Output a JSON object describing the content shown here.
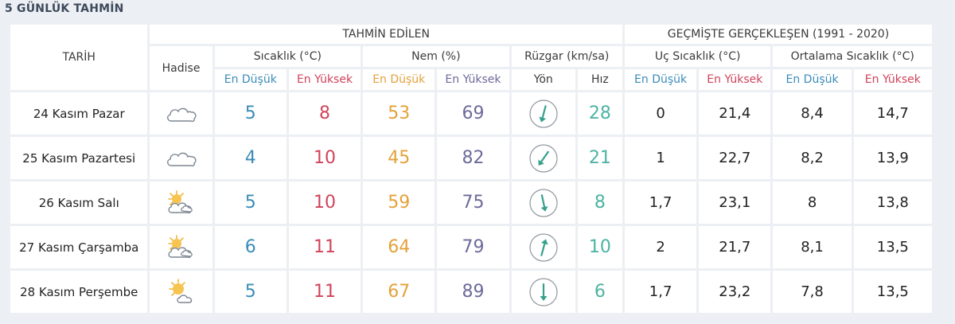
{
  "section_title": "5 GÜNLÜK TAHMİN",
  "header": {
    "forecast_group": "TAHMİN EDİLEN",
    "historical_group": "GEÇMİŞTE GERÇEKLEŞEN (1991 - 2020)",
    "date_label": "TARİH",
    "event_label": "Hadise",
    "temp_label": "Sıcaklık (°C)",
    "humidity_label": "Nem (%)",
    "wind_label": "Rüzgar (km/sa)",
    "extreme_temp_label": "Uç Sıcaklık (°C)",
    "avg_temp_label": "Ortalama Sıcaklık (°C)",
    "low": "En Düşük",
    "high": "En Yüksek",
    "direction": "Yön",
    "speed": "Hız"
  },
  "rows": [
    {
      "date": "24 Kasım Pazar",
      "icon": "cloudy-icon",
      "temp_low": "5",
      "temp_high": "8",
      "hum_low": "53",
      "hum_high": "69",
      "wind_dir_deg": 195,
      "wind_speed": "28",
      "ext_low": "0",
      "ext_high": "21,4",
      "avg_low": "8,4",
      "avg_high": "14,7"
    },
    {
      "date": "25 Kasım Pazartesi",
      "icon": "cloudy-icon",
      "temp_low": "4",
      "temp_high": "10",
      "hum_low": "45",
      "hum_high": "82",
      "wind_dir_deg": 215,
      "wind_speed": "21",
      "ext_low": "1",
      "ext_high": "22,7",
      "avg_low": "8,2",
      "avg_high": "13,9"
    },
    {
      "date": "26 Kasım Salı",
      "icon": "partly-cloudy-icon",
      "temp_low": "5",
      "temp_high": "10",
      "hum_low": "59",
      "hum_high": "75",
      "wind_dir_deg": 168,
      "wind_speed": "8",
      "ext_low": "1,7",
      "ext_high": "23,1",
      "avg_low": "8",
      "avg_high": "13,8"
    },
    {
      "date": "27 Kasım Çarşamba",
      "icon": "partly-cloudy-icon",
      "temp_low": "6",
      "temp_high": "11",
      "hum_low": "64",
      "hum_high": "79",
      "wind_dir_deg": 15,
      "wind_speed": "10",
      "ext_low": "2",
      "ext_high": "21,7",
      "avg_low": "8,1",
      "avg_high": "13,5"
    },
    {
      "date": "28 Kasım Perşembe",
      "icon": "sun-cloud-icon",
      "temp_low": "5",
      "temp_high": "11",
      "hum_low": "67",
      "hum_high": "89",
      "wind_dir_deg": 180,
      "wind_speed": "6",
      "ext_low": "1,7",
      "ext_high": "23,2",
      "avg_low": "7,8",
      "avg_high": "13,5"
    }
  ]
}
